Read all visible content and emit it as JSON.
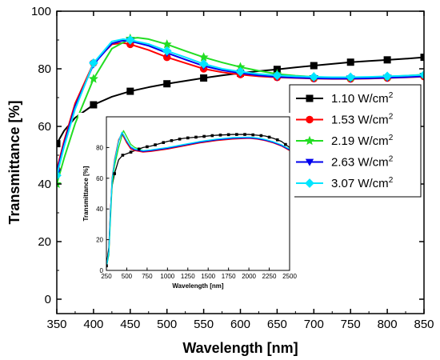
{
  "chart_data": [
    {
      "type": "line",
      "xlabel": "Wavelength [nm]",
      "ylabel": "Transmittance [%]",
      "xlim": [
        350,
        850
      ],
      "ylim": [
        -5,
        100
      ],
      "xticks": [
        350,
        400,
        450,
        500,
        550,
        600,
        650,
        700,
        750,
        800,
        850
      ],
      "yticks": [
        0,
        20,
        40,
        60,
        80,
        100
      ],
      "grid": false,
      "legend": "right",
      "series": [
        {
          "name": "1.10 W/cm",
          "superscript": "2",
          "color": "#000000",
          "marker": "square",
          "x": [
            350,
            360,
            375,
            400,
            425,
            450,
            475,
            500,
            525,
            550,
            575,
            600,
            625,
            650,
            675,
            700,
            725,
            750,
            775,
            800,
            825,
            850
          ],
          "y": [
            54,
            58.5,
            63,
            67.5,
            70.3,
            72.2,
            73.6,
            74.8,
            75.8,
            76.8,
            77.7,
            78.5,
            79.2,
            79.8,
            80.5,
            81.1,
            81.7,
            82.3,
            82.7,
            83.1,
            83.5,
            84
          ]
        },
        {
          "name": "1.53 W/cm",
          "superscript": "2",
          "color": "#ff0000",
          "marker": "circle",
          "x": [
            350,
            360,
            375,
            400,
            425,
            440,
            450,
            475,
            500,
            525,
            550,
            575,
            600,
            625,
            650,
            675,
            700,
            725,
            750,
            775,
            800,
            825,
            850
          ],
          "y": [
            45,
            55,
            68,
            82,
            88.5,
            89,
            88.5,
            86.5,
            84,
            82,
            80,
            78.8,
            78,
            77.4,
            77,
            76.8,
            76.6,
            76.5,
            76.5,
            76.6,
            76.8,
            77,
            77.3
          ]
        },
        {
          "name": "2.19 W/cm",
          "superscript": "2",
          "color": "#22dd22",
          "marker": "star",
          "x": [
            350,
            360,
            375,
            400,
            425,
            450,
            460,
            475,
            500,
            525,
            550,
            575,
            600,
            625,
            650,
            675,
            700,
            725,
            750,
            775,
            800,
            825,
            850
          ],
          "y": [
            40,
            49,
            61,
            76.5,
            87,
            90.5,
            90.8,
            90.3,
            88.5,
            86.2,
            84,
            82.2,
            80.6,
            79.3,
            78.2,
            77.6,
            77.2,
            77,
            77,
            77.1,
            77.3,
            77.6,
            78
          ]
        },
        {
          "name": "2.63 W/cm",
          "superscript": "2",
          "color": "#0000ee",
          "marker": "triangle-down",
          "x": [
            350,
            360,
            375,
            400,
            425,
            440,
            450,
            475,
            500,
            525,
            550,
            575,
            600,
            625,
            650,
            675,
            700,
            725,
            750,
            775,
            800,
            825,
            850
          ],
          "y": [
            44,
            54,
            67,
            81.5,
            88.8,
            89.8,
            89.6,
            88,
            85.5,
            83.2,
            81,
            79.5,
            78.5,
            77.7,
            77.2,
            76.9,
            76.7,
            76.6,
            76.6,
            76.7,
            76.9,
            77.1,
            77.4
          ]
        },
        {
          "name": "3.07 W/cm",
          "superscript": "2",
          "color": "#00e5ff",
          "marker": "diamond",
          "x": [
            350,
            360,
            375,
            400,
            425,
            440,
            450,
            475,
            500,
            525,
            550,
            575,
            600,
            625,
            650,
            675,
            700,
            725,
            750,
            775,
            800,
            825,
            850
          ],
          "y": [
            43,
            53,
            66,
            82,
            89.5,
            90.3,
            90,
            88.6,
            86.2,
            84,
            81.7,
            80,
            79,
            78.2,
            77.7,
            77.4,
            77.2,
            77.1,
            77.1,
            77.2,
            77.4,
            77.6,
            77.9
          ]
        }
      ]
    },
    {
      "type": "line",
      "role": "inset",
      "xlabel": "Wavelength [nm]",
      "ylabel": "Transmittance [%]",
      "xlim": [
        250,
        2500
      ],
      "ylim": [
        0,
        100
      ],
      "xticks": [
        250,
        500,
        750,
        1000,
        1250,
        1500,
        1750,
        2000,
        2250,
        2500
      ],
      "yticks": [
        0,
        20,
        40,
        60,
        80
      ],
      "series": [
        {
          "name": "1.10 W/cm2",
          "color": "#000000",
          "x": [
            250,
            280,
            300,
            320,
            350,
            400,
            450,
            500,
            600,
            700,
            800,
            1000,
            1200,
            1400,
            1600,
            1800,
            2000,
            2100,
            2200,
            2300,
            2400,
            2500
          ],
          "y": [
            3,
            15,
            40,
            55,
            63,
            72,
            75,
            76,
            78,
            80,
            81,
            84,
            86,
            87,
            88,
            88.5,
            88.5,
            88,
            87.5,
            86,
            84,
            80
          ]
        },
        {
          "name": "1.53 W/cm2",
          "color": "#ff0000",
          "x": [
            250,
            280,
            300,
            320,
            350,
            400,
            440,
            470,
            500,
            550,
            600,
            700,
            800,
            1000,
            1200,
            1400,
            1600,
            1800,
            2000,
            2100,
            2200,
            2300,
            2400,
            2500
          ],
          "y": [
            2,
            12,
            38,
            60,
            72,
            85,
            89,
            86,
            83,
            79,
            78,
            77,
            77.5,
            79,
            81,
            83,
            84.5,
            85.5,
            86,
            85.5,
            84.5,
            83,
            81,
            78
          ]
        },
        {
          "name": "2.19 W/cm2",
          "color": "#22dd22",
          "x": [
            250,
            280,
            300,
            320,
            350,
            400,
            460,
            490,
            520,
            550,
            600,
            700,
            800,
            1000,
            1200,
            1400,
            1600,
            1800,
            2000,
            2100,
            2200,
            2300,
            2400,
            2500
          ],
          "y": [
            2,
            10,
            33,
            55,
            68,
            80,
            91,
            88,
            85,
            82,
            80,
            78,
            78,
            79.5,
            81.5,
            83.5,
            85,
            86,
            86.5,
            86,
            85,
            83.5,
            81.5,
            79
          ]
        },
        {
          "name": "2.63 W/cm2",
          "color": "#0000ee",
          "x": [
            250,
            280,
            300,
            320,
            350,
            400,
            440,
            470,
            500,
            550,
            600,
            700,
            800,
            1000,
            1200,
            1400,
            1600,
            1800,
            2000,
            2100,
            2200,
            2300,
            2400,
            2500
          ],
          "y": [
            2,
            12,
            37,
            59,
            71,
            84,
            89.5,
            87,
            84,
            80,
            78.5,
            77.5,
            78,
            79.5,
            81.5,
            83.5,
            85,
            86,
            86.3,
            85.8,
            84.8,
            83.3,
            81.3,
            78.5
          ]
        },
        {
          "name": "3.07 W/cm2",
          "color": "#00e5ff",
          "x": [
            250,
            280,
            300,
            320,
            350,
            400,
            440,
            470,
            500,
            550,
            600,
            700,
            800,
            1000,
            1200,
            1400,
            1600,
            1800,
            2000,
            2100,
            2200,
            2300,
            2400,
            2500
          ],
          "y": [
            2,
            12,
            37,
            59,
            71,
            84,
            90,
            87.5,
            84.5,
            80.5,
            79,
            78,
            78.5,
            80,
            82,
            84,
            85.5,
            86.5,
            86.8,
            86.3,
            85.3,
            83.8,
            81.8,
            79
          ]
        }
      ]
    }
  ]
}
